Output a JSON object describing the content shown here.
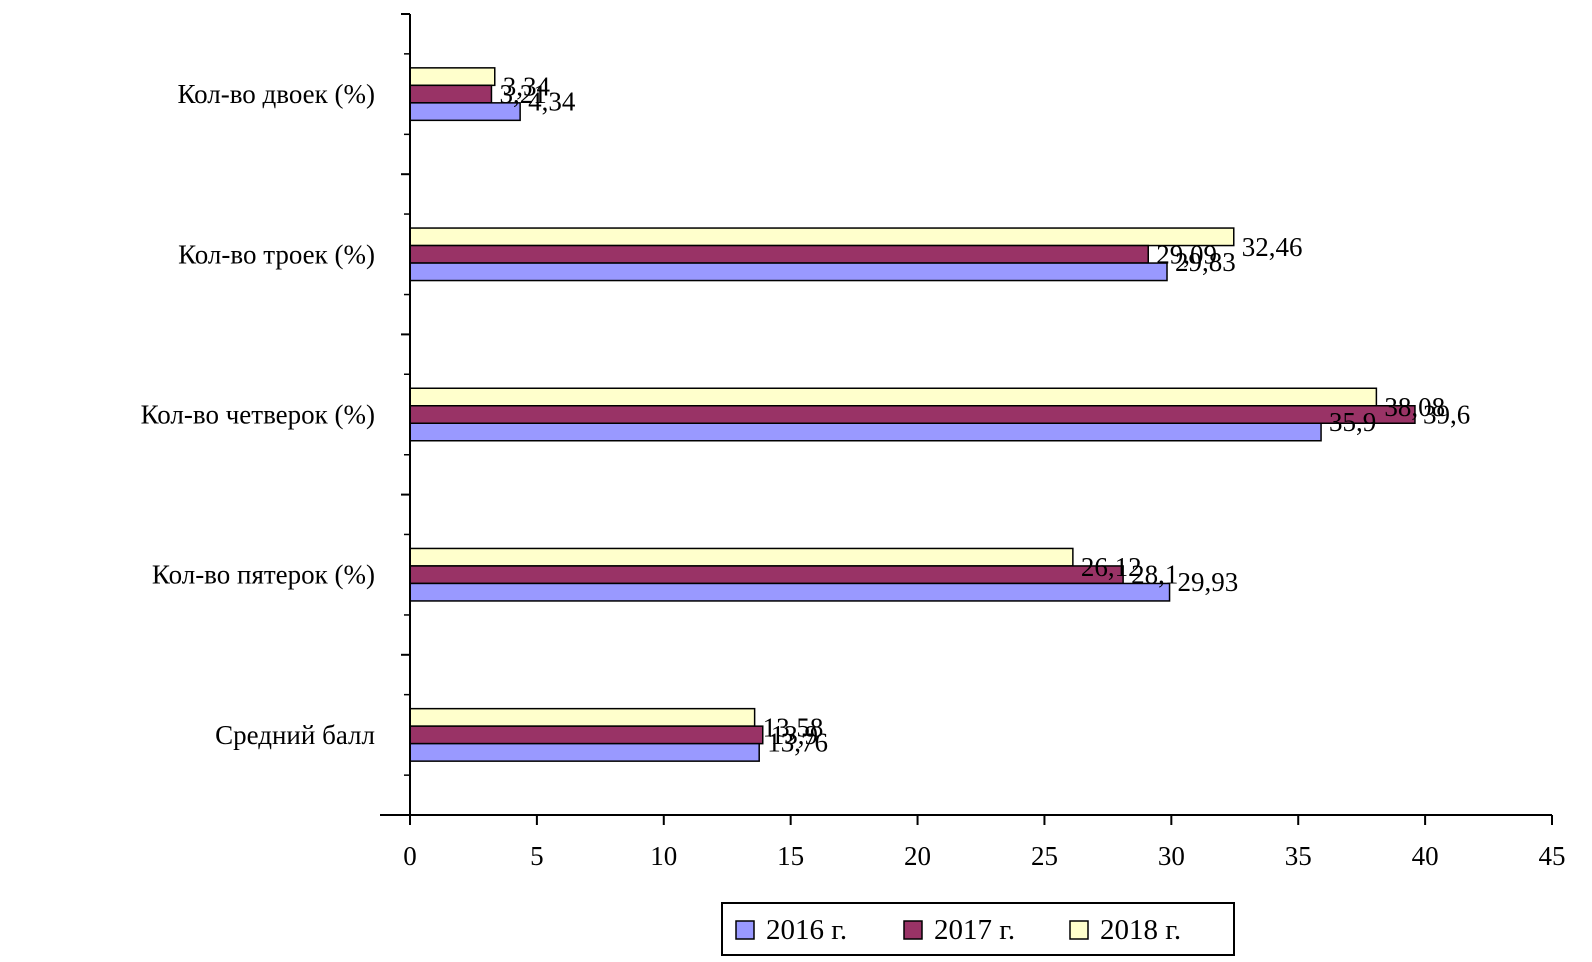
{
  "chart_data": {
    "type": "bar",
    "orientation": "horizontal",
    "categories": [
      "Кол-во двоек (%)",
      "Кол-во троек  (%)",
      "Кол-во четверок  (%)",
      "Кол-во пятерок  (%)",
      "Средний балл"
    ],
    "series": [
      {
        "name": "2016 г.",
        "color": "#9999ff",
        "values": [
          4.34,
          29.83,
          35.9,
          29.93,
          13.76
        ],
        "labels": [
          "4,34",
          "29,83",
          "35,9",
          "29,93",
          "13,76"
        ]
      },
      {
        "name": "2017 г.",
        "color": "#993366",
        "values": [
          3.21,
          29.09,
          39.6,
          28.1,
          13.9
        ],
        "labels": [
          "3,21",
          "29,09",
          "39,6",
          "28,1",
          "13,9"
        ]
      },
      {
        "name": "2018 г.",
        "color": "#ffffcc",
        "values": [
          3.34,
          32.46,
          38.08,
          26.12,
          13.58
        ],
        "labels": [
          "3,34",
          "32,46",
          "38,08",
          "26,12",
          "13,58"
        ]
      }
    ],
    "x_ticks": [
      "0",
      "5",
      "10",
      "15",
      "20",
      "25",
      "30",
      "35",
      "40",
      "45"
    ],
    "xlim": [
      0,
      45
    ],
    "grid": false,
    "legend_position": "bottom"
  }
}
